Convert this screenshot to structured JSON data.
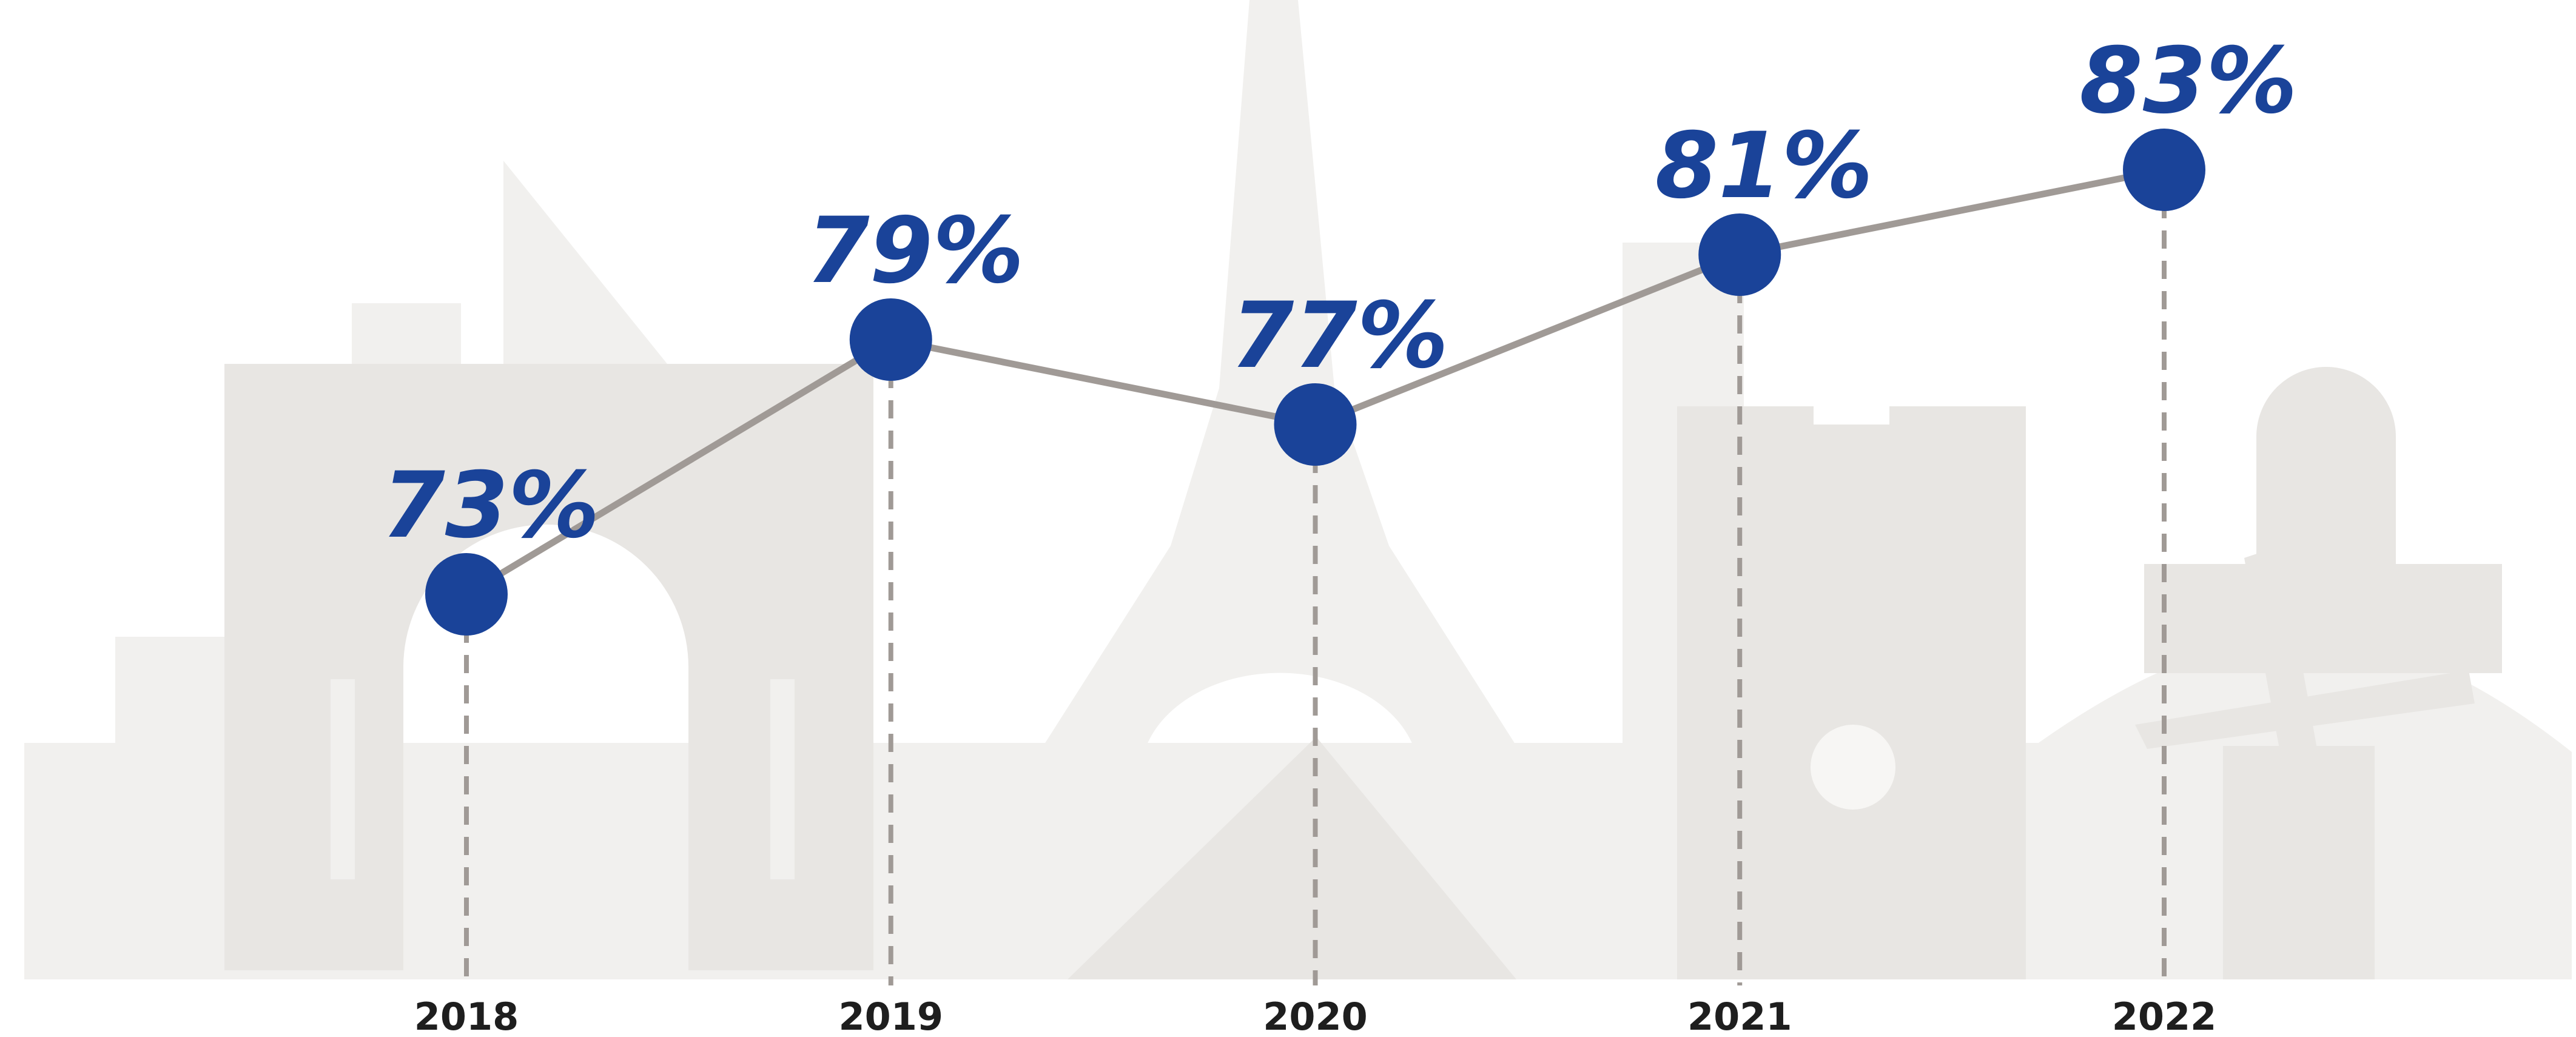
{
  "chart_data": {
    "type": "line",
    "categories": [
      "2018",
      "2019",
      "2020",
      "2021",
      "2022"
    ],
    "values": [
      73,
      79,
      77,
      81,
      83
    ],
    "value_labels": [
      "73%",
      "79%",
      "77%",
      "81%",
      "83%"
    ],
    "color": "#1a4399",
    "line_color": "#a09a96"
  }
}
